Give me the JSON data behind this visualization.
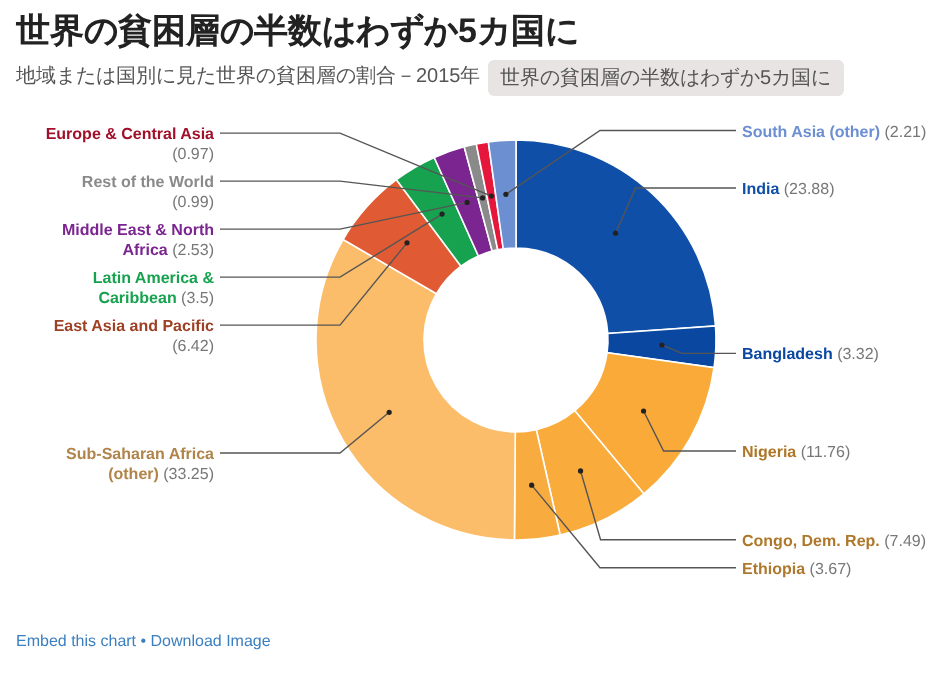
{
  "chart_data": {
    "type": "donut",
    "title": "世界の貧困層の半数はわずか5カ国に",
    "subtitle": "地域または国別に見た世界の貧困層の割合－2015年",
    "categories": [
      "India",
      "Bangladesh",
      "Nigeria",
      "Congo, Dem. Rep.",
      "Ethiopia",
      "Sub-Saharan Africa (other)",
      "East Asia and Pacific",
      "Latin America & Caribbean",
      "Middle East & North Africa",
      "Rest of the World",
      "Europe & Central Asia",
      "South Asia (other)"
    ],
    "values": [
      23.88,
      3.32,
      11.76,
      7.49,
      3.67,
      33.25,
      6.42,
      3.5,
      2.53,
      0.99,
      0.97,
      2.21
    ],
    "colors": [
      "#0f4fa8",
      "#0a47a0",
      "#f9aa38",
      "#f9ab3c",
      "#f8ac40",
      "#fcbd6a",
      "#e05b33",
      "#17a24f",
      "#7b2590",
      "#8a8a8a",
      "#e6173c",
      "#6b8fd1"
    ],
    "value_labels": [
      "(23.88)",
      "(3.32)",
      "(11.76)",
      "(7.49)",
      "(3.67)",
      "(33.25)",
      "(6.42)",
      "(3.5)",
      "(2.53)",
      "(0.99)",
      "(0.97)",
      "(2.21)"
    ],
    "annotations": [
      "世界の貧困層の半数はわずか5カ国に",
      "Embed this chart • Download Image"
    ]
  }
}
